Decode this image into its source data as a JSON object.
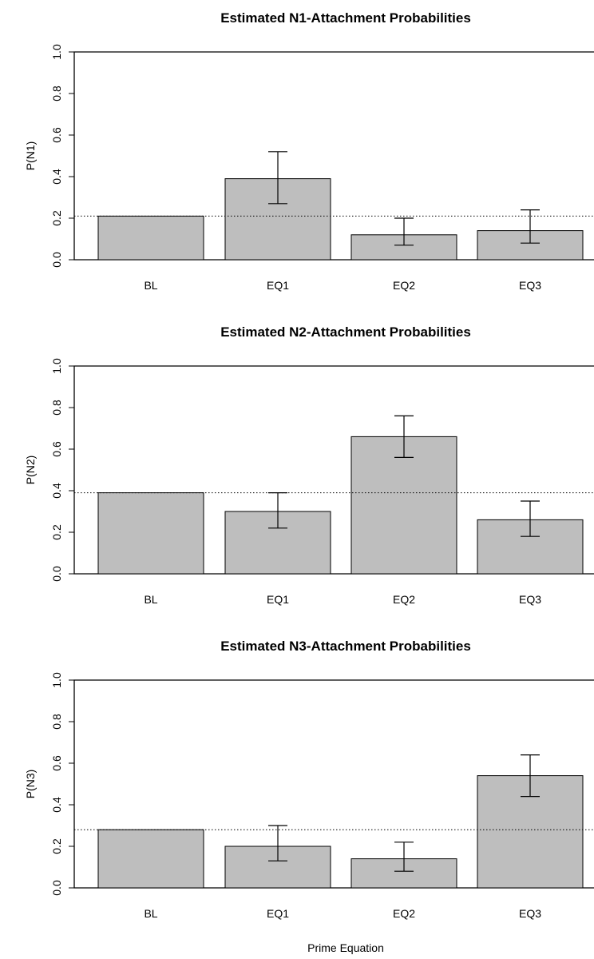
{
  "chart_data": [
    {
      "type": "bar",
      "title": "Estimated N1-Attachment Probabilities",
      "ylabel": "P(N1)",
      "xlabel": "",
      "categories": [
        "BL",
        "EQ1",
        "EQ2",
        "EQ3"
      ],
      "values": [
        0.21,
        0.39,
        0.12,
        0.14
      ],
      "error_low": [
        null,
        0.27,
        0.07,
        0.08
      ],
      "error_high": [
        null,
        0.52,
        0.2,
        0.24
      ],
      "reference_line": 0.21,
      "ylim": [
        0,
        1
      ],
      "yticks": [
        "0.0",
        "0.2",
        "0.4",
        "0.6",
        "0.8",
        "1.0"
      ],
      "bar_color": "#bebebe"
    },
    {
      "type": "bar",
      "title": "Estimated N2-Attachment Probabilities",
      "ylabel": "P(N2)",
      "xlabel": "",
      "categories": [
        "BL",
        "EQ1",
        "EQ2",
        "EQ3"
      ],
      "values": [
        0.39,
        0.3,
        0.66,
        0.26
      ],
      "error_low": [
        null,
        0.22,
        0.56,
        0.18
      ],
      "error_high": [
        null,
        0.39,
        0.76,
        0.35
      ],
      "reference_line": 0.39,
      "ylim": [
        0,
        1
      ],
      "yticks": [
        "0.0",
        "0.2",
        "0.4",
        "0.6",
        "0.8",
        "1.0"
      ],
      "bar_color": "#bebebe"
    },
    {
      "type": "bar",
      "title": "Estimated N3-Attachment Probabilities",
      "ylabel": "P(N3)",
      "xlabel": "Prime Equation",
      "categories": [
        "BL",
        "EQ1",
        "EQ2",
        "EQ3"
      ],
      "values": [
        0.28,
        0.2,
        0.14,
        0.54
      ],
      "error_low": [
        null,
        0.13,
        0.08,
        0.44
      ],
      "error_high": [
        null,
        0.3,
        0.22,
        0.64
      ],
      "reference_line": 0.28,
      "ylim": [
        0,
        1
      ],
      "yticks": [
        "0.0",
        "0.2",
        "0.4",
        "0.6",
        "0.8",
        "1.0"
      ],
      "bar_color": "#bebebe"
    }
  ]
}
